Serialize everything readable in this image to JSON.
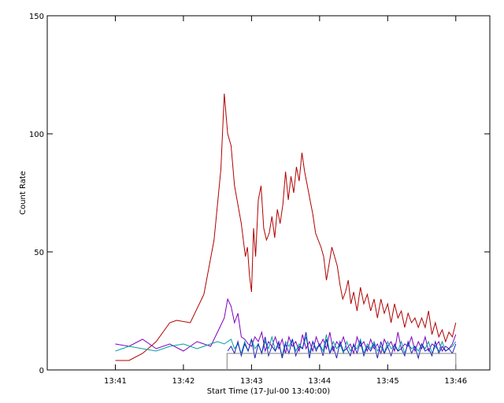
{
  "chart_data": {
    "type": "line",
    "title": "",
    "xlabel": "Start Time (17-Jul-00 13:40:00)",
    "ylabel": "Count Rate",
    "x_unit": "minutes after 13:40:00",
    "xlim": [
      0,
      6.5
    ],
    "ylim": [
      0,
      150
    ],
    "x_ticks": [
      {
        "value": 1,
        "label": "13:41"
      },
      {
        "value": 2,
        "label": "13:42"
      },
      {
        "value": 3,
        "label": "13:43"
      },
      {
        "value": 4,
        "label": "13:44"
      },
      {
        "value": 5,
        "label": "13:45"
      },
      {
        "value": 6,
        "label": "13:46"
      }
    ],
    "y_ticks": [
      {
        "value": 0,
        "label": "0"
      },
      {
        "value": 50,
        "label": "50"
      },
      {
        "value": 100,
        "label": "100"
      },
      {
        "value": 150,
        "label": "150"
      }
    ],
    "grid": false,
    "legend": "none",
    "series": [
      {
        "color": "#b00000",
        "x": [
          1.0,
          1.2,
          1.4,
          1.6,
          1.8,
          1.9,
          2.1,
          2.3,
          2.45,
          2.55,
          2.6,
          2.65,
          2.7,
          2.75,
          2.8,
          2.85,
          2.88,
          2.91,
          2.94,
          2.97,
          3.0,
          3.03,
          3.06,
          3.1,
          3.14,
          3.18,
          3.22,
          3.26,
          3.3,
          3.34,
          3.38,
          3.42,
          3.46,
          3.5,
          3.54,
          3.58,
          3.62,
          3.66,
          3.7,
          3.74,
          3.78,
          3.82,
          3.86,
          3.9,
          3.94,
          3.98,
          4.02,
          4.06,
          4.1,
          4.14,
          4.18,
          4.22,
          4.26,
          4.3,
          4.34,
          4.38,
          4.42,
          4.46,
          4.5,
          4.55,
          4.6,
          4.65,
          4.7,
          4.75,
          4.8,
          4.85,
          4.9,
          4.95,
          5.0,
          5.05,
          5.1,
          5.15,
          5.2,
          5.25,
          5.3,
          5.35,
          5.4,
          5.45,
          5.5,
          5.55,
          5.6,
          5.65,
          5.7,
          5.75,
          5.8,
          5.85,
          5.9,
          5.95,
          6.0
        ],
        "y": [
          4,
          4,
          7,
          12,
          20,
          21,
          20,
          32,
          55,
          85,
          117,
          100,
          95,
          78,
          70,
          62,
          55,
          48,
          52,
          40,
          33,
          60,
          48,
          72,
          78,
          60,
          55,
          58,
          65,
          56,
          68,
          62,
          70,
          84,
          72,
          82,
          75,
          86,
          80,
          92,
          84,
          78,
          72,
          66,
          58,
          55,
          52,
          48,
          38,
          45,
          52,
          48,
          44,
          36,
          30,
          33,
          38,
          28,
          33,
          25,
          35,
          28,
          32,
          25,
          30,
          22,
          30,
          24,
          28,
          20,
          28,
          22,
          25,
          18,
          24,
          20,
          22,
          18,
          22,
          18,
          25,
          15,
          20,
          14,
          17,
          12,
          16,
          14,
          20
        ]
      },
      {
        "color": "#7f00bf",
        "x": [
          1.0,
          1.2,
          1.4,
          1.6,
          1.8,
          2.0,
          2.2,
          2.4,
          2.5,
          2.6,
          2.65,
          2.7,
          2.75,
          2.8,
          2.85,
          2.9,
          2.95,
          3.0,
          3.05,
          3.1,
          3.15,
          3.2,
          3.25,
          3.3,
          3.35,
          3.4,
          3.45,
          3.5,
          3.55,
          3.6,
          3.65,
          3.7,
          3.75,
          3.8,
          3.85,
          3.9,
          3.95,
          4.0,
          4.05,
          4.1,
          4.15,
          4.2,
          4.25,
          4.3,
          4.35,
          4.4,
          4.45,
          4.5,
          4.55,
          4.6,
          4.65,
          4.7,
          4.75,
          4.8,
          4.85,
          4.9,
          4.95,
          5.0,
          5.05,
          5.1,
          5.15,
          5.2,
          5.25,
          5.3,
          5.35,
          5.4,
          5.45,
          5.5,
          5.55,
          5.6,
          5.65,
          5.7,
          5.75,
          5.8,
          5.85,
          5.9,
          5.95,
          6.0
        ],
        "y": [
          11,
          10,
          13,
          9,
          11,
          8,
          12,
          10,
          16,
          22,
          30,
          27,
          20,
          24,
          14,
          13,
          11,
          10,
          14,
          12,
          16,
          8,
          12,
          10,
          14,
          9,
          13,
          7,
          14,
          10,
          12,
          8,
          15,
          9,
          12,
          8,
          14,
          10,
          13,
          9,
          16,
          8,
          12,
          10,
          14,
          9,
          11,
          7,
          14,
          10,
          12,
          8,
          13,
          9,
          11,
          7,
          13,
          10,
          12,
          8,
          16,
          9,
          11,
          10,
          14,
          8,
          12,
          9,
          14,
          8,
          11,
          10,
          12,
          8,
          10,
          9,
          11,
          15
        ]
      },
      {
        "color": "#00a0a0",
        "x": [
          1.0,
          1.2,
          1.4,
          1.6,
          1.8,
          2.0,
          2.2,
          2.4,
          2.5,
          2.6,
          2.65,
          2.7,
          2.75,
          2.8,
          2.85,
          2.9,
          2.95,
          3.0,
          3.05,
          3.1,
          3.15,
          3.2,
          3.25,
          3.3,
          3.35,
          3.4,
          3.45,
          3.5,
          3.55,
          3.6,
          3.65,
          3.7,
          3.75,
          3.8,
          3.85,
          3.9,
          3.95,
          4.0,
          4.05,
          4.1,
          4.15,
          4.2,
          4.25,
          4.3,
          4.35,
          4.4,
          4.45,
          4.5,
          4.55,
          4.6,
          4.65,
          4.7,
          4.75,
          4.8,
          4.85,
          4.9,
          4.95,
          5.0,
          5.05,
          5.1,
          5.15,
          5.2,
          5.25,
          5.3,
          5.35,
          5.4,
          5.45,
          5.5,
          5.55,
          5.6,
          5.65,
          5.7,
          5.75,
          5.8,
          5.85,
          5.9,
          5.95,
          6.0
        ],
        "y": [
          8,
          10,
          9,
          8,
          10,
          11,
          9,
          11,
          12,
          11,
          12,
          13,
          9,
          11,
          7,
          12,
          8,
          13,
          9,
          11,
          7,
          12,
          9,
          14,
          8,
          11,
          6,
          12,
          10,
          13,
          8,
          11,
          9,
          14,
          7,
          12,
          9,
          11,
          8,
          15,
          7,
          12,
          9,
          11,
          7,
          12,
          8,
          10,
          9,
          13,
          7,
          11,
          9,
          12,
          8,
          10,
          7,
          12,
          9,
          10,
          8,
          12,
          7,
          11,
          9,
          10,
          8,
          11,
          9,
          12,
          7,
          10,
          8,
          12,
          8,
          9,
          10,
          12
        ]
      },
      {
        "color": "#2020c0",
        "x": [
          2.65,
          2.7,
          2.75,
          2.8,
          2.85,
          2.9,
          2.95,
          3.0,
          3.05,
          3.1,
          3.15,
          3.2,
          3.25,
          3.3,
          3.35,
          3.4,
          3.45,
          3.5,
          3.55,
          3.6,
          3.65,
          3.7,
          3.75,
          3.8,
          3.85,
          3.9,
          3.95,
          4.0,
          4.05,
          4.1,
          4.15,
          4.2,
          4.25,
          4.3,
          4.35,
          4.4,
          4.45,
          4.5,
          4.55,
          4.6,
          4.65,
          4.7,
          4.75,
          4.8,
          4.85,
          4.9,
          4.95,
          5.0,
          5.05,
          5.1,
          5.15,
          5.2,
          5.25,
          5.3,
          5.35,
          5.4,
          5.45,
          5.5,
          5.55,
          5.6,
          5.65,
          5.7,
          5.75,
          5.8,
          5.85,
          5.9,
          5.95,
          6.0
        ],
        "y": [
          8,
          10,
          7,
          12,
          6,
          11,
          8,
          13,
          5,
          11,
          7,
          14,
          6,
          10,
          8,
          12,
          5,
          11,
          7,
          13,
          6,
          10,
          9,
          16,
          5,
          12,
          8,
          11,
          6,
          13,
          7,
          10,
          5,
          12,
          8,
          9,
          6,
          11,
          7,
          12,
          6,
          10,
          8,
          11,
          5,
          12,
          7,
          10,
          6,
          11,
          8,
          9,
          6,
          12,
          7,
          10,
          5,
          11,
          8,
          9,
          6,
          12,
          7,
          10,
          8,
          9,
          7,
          11
        ]
      },
      {
        "color": "#808080",
        "x": [
          2.64,
          2.64,
          6.0,
          6.0
        ],
        "y": [
          0,
          7,
          7,
          0
        ]
      }
    ]
  }
}
